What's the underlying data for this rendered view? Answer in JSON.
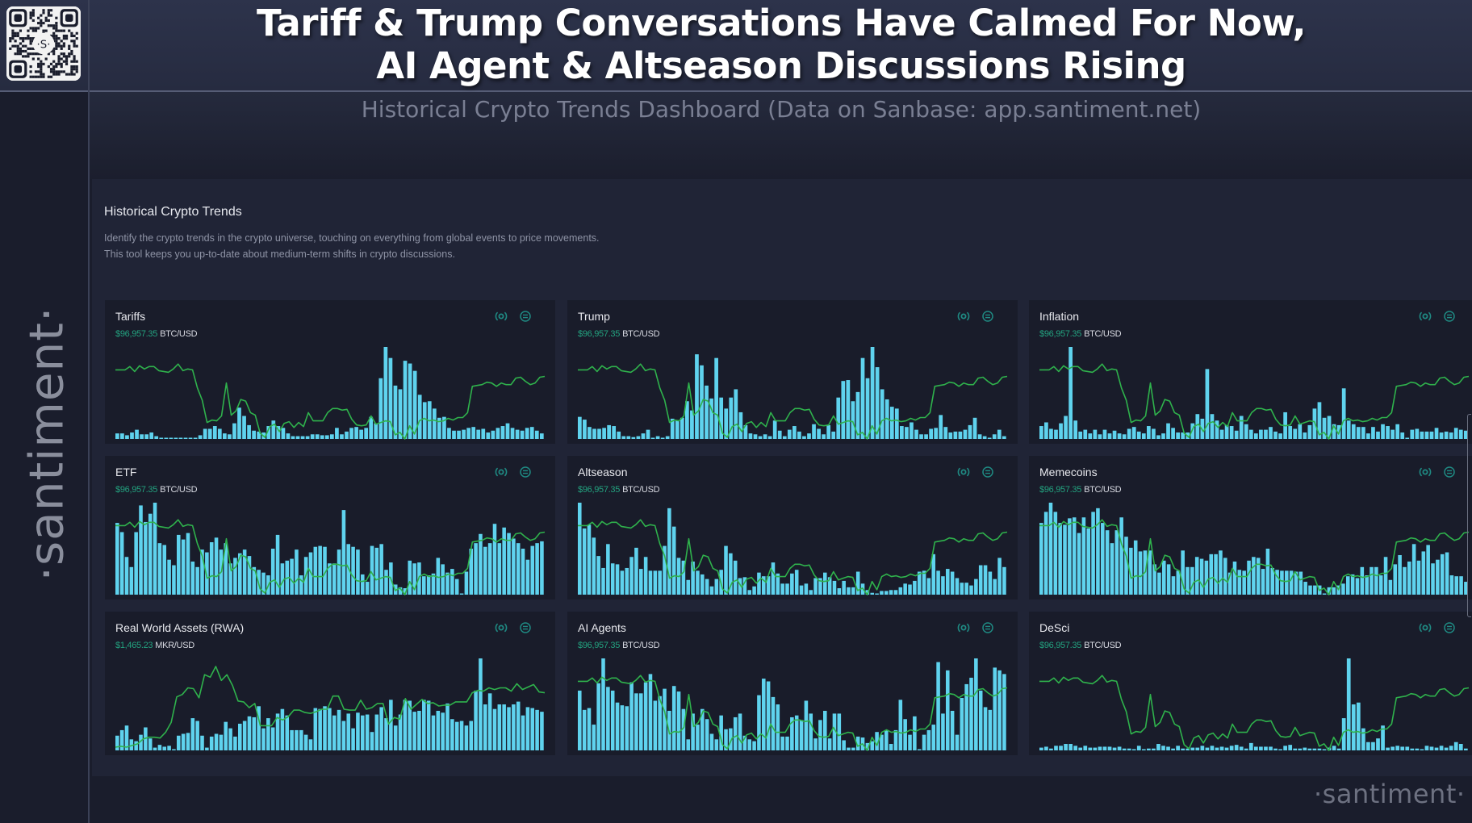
{
  "header": {
    "title_line1": "Tariff & Trump Conversations Have Calmed For Now,",
    "title_line2": "AI Agent & Altseason Discussions Rising",
    "subtitle": "Historical Crypto Trends Dashboard (Data on Sanbase: app.santiment.net)",
    "qr_center_glyph": "·S·"
  },
  "sidebar": {
    "logo_text": "·santiment·"
  },
  "watermark": "·santiment·",
  "panel": {
    "title": "Historical Crypto Trends",
    "description": "Identify the crypto trends in the crypto universe, touching on everything from global events to price movements. This tool keeps you up-to-date about medium-term shifts in crypto discussions."
  },
  "colors": {
    "bar": "#5fd3ee",
    "line": "#2fb24c",
    "price": "#23a27f",
    "icon": "#1f8a83"
  },
  "icons": {
    "signal": "broadcast-icon",
    "menu": "circle-menu-icon"
  },
  "btc_price_line": [
    0.82,
    0.82,
    0.82,
    0.86,
    0.8,
    0.87,
    0.83,
    0.86,
    0.86,
    0.81,
    0.8,
    0.79,
    0.83,
    0.89,
    0.81,
    0.83,
    0.82,
    0.6,
    0.45,
    0.18,
    0.21,
    0.2,
    0.26,
    0.66,
    0.27,
    0.32,
    0.46,
    0.44,
    0.3,
    0.27,
    0.05,
    0.0,
    0.13,
    0.16,
    0.07,
    0.17,
    0.19,
    0.12,
    0.18,
    0.13,
    0.3,
    0.2,
    0.2,
    0.2,
    0.3,
    0.35,
    0.35,
    0.33,
    0.34,
    0.22,
    0.15,
    0.14,
    0.15,
    0.26,
    0.16,
    0.18,
    0.2,
    0.19,
    0.03,
    0.06,
    -0.02,
    0.14,
    0.04,
    0.2,
    0.23,
    0.2,
    0.21,
    0.19,
    0.2,
    0.23,
    0.21,
    0.24,
    0.24,
    0.3,
    0.62,
    0.63,
    0.64,
    0.67,
    0.66,
    0.62,
    0.66,
    0.64,
    0.64,
    0.72,
    0.73,
    0.68,
    0.64,
    0.66,
    0.73,
    0.74
  ],
  "cards": [
    {
      "title": "Tariffs",
      "price": "$96,957.35",
      "pair": "BTC/USD",
      "chart_data": {
        "type": "bar+line",
        "bars": [
          0.06,
          0.06,
          0.04,
          0.07,
          0.1,
          0.05,
          0.05,
          0.07,
          0.03,
          0.01,
          0.01,
          0.0,
          0.0,
          0.01,
          0.01,
          0.01,
          0.0,
          0.04,
          0.11,
          0.11,
          0.14,
          0.11,
          0.06,
          0.05,
          0.17,
          0.34,
          0.25,
          0.15,
          0.09,
          0.08,
          0.07,
          0.14,
          0.2,
          0.14,
          0.12,
          0.06,
          0.03,
          0.03,
          0.03,
          0.03,
          0.05,
          0.05,
          0.04,
          0.04,
          0.05,
          0.12,
          0.05,
          0.08,
          0.12,
          0.13,
          0.1,
          0.12,
          0.24,
          0.17,
          0.66,
          1.0,
          0.88,
          0.58,
          0.54,
          0.85,
          0.82,
          0.74,
          0.48,
          0.4,
          0.41,
          0.33,
          0.23,
          0.24,
          0.12,
          0.09,
          0.09,
          0.1,
          0.12,
          0.13,
          0.1,
          0.11,
          0.07,
          0.09,
          0.12,
          0.14,
          0.17,
          0.12,
          0.1,
          0.09,
          0.12,
          0.13,
          0.09,
          0.06
        ]
      }
    },
    {
      "title": "Trump",
      "price": "$96,957.35",
      "pair": "BTC/USD",
      "chart_data": {
        "type": "bar+line",
        "bars": [
          0.24,
          0.21,
          0.13,
          0.11,
          0.11,
          0.12,
          0.15,
          0.14,
          0.08,
          0.03,
          0.03,
          0.02,
          0.03,
          0.06,
          0.1,
          0.01,
          0.03,
          0.0,
          0.03,
          0.22,
          0.2,
          0.23,
          0.41,
          0.31,
          0.92,
          0.8,
          0.58,
          0.44,
          0.88,
          0.45,
          0.33,
          0.45,
          0.54,
          0.29,
          0.15,
          0.06,
          0.05,
          0.03,
          0.05,
          0.03,
          0.2,
          0.09,
          0.03,
          0.1,
          0.14,
          0.08,
          0.03,
          0.06,
          0.16,
          0.11,
          0.05,
          0.15,
          0.08,
          0.45,
          0.63,
          0.64,
          0.41,
          0.51,
          0.88,
          0.66,
          1.0,
          0.78,
          0.54,
          0.43,
          0.35,
          0.33,
          0.14,
          0.13,
          0.18,
          0.1,
          0.05,
          0.05,
          0.11,
          0.12,
          0.26,
          0.13,
          0.07,
          0.08,
          0.08,
          0.1,
          0.15,
          0.23,
          0.05,
          0.03,
          0.0,
          0.05,
          0.1,
          0.03
        ]
      }
    },
    {
      "title": "Inflation",
      "price": "$96,957.35",
      "pair": "BTC/USD",
      "chart_data": {
        "type": "bar+line",
        "bars": [
          0.14,
          0.18,
          0.11,
          0.1,
          0.17,
          0.25,
          1.0,
          0.2,
          0.08,
          0.1,
          0.06,
          0.1,
          0.05,
          0.1,
          0.06,
          0.09,
          0.06,
          0.05,
          0.11,
          0.13,
          0.08,
          0.06,
          0.14,
          0.11,
          0.04,
          0.06,
          0.17,
          0.12,
          0.07,
          0.07,
          0.07,
          0.17,
          0.27,
          0.22,
          0.76,
          0.27,
          0.2,
          0.1,
          0.15,
          0.14,
          0.09,
          0.25,
          0.16,
          0.1,
          0.06,
          0.1,
          0.1,
          0.13,
          0.08,
          0.06,
          0.29,
          0.14,
          0.11,
          0.16,
          0.07,
          0.15,
          0.33,
          0.4,
          0.23,
          0.25,
          0.16,
          0.15,
          0.55,
          0.2,
          0.16,
          0.13,
          0.13,
          0.06,
          0.13,
          0.08,
          0.16,
          0.14,
          0.1,
          0.16,
          0.07,
          0.0,
          0.1,
          0.11,
          0.08,
          0.08,
          0.08,
          0.12,
          0.07,
          0.08,
          0.07,
          0.12,
          0.1,
          0.09
        ]
      }
    },
    {
      "title": "ETF",
      "price": "$96,957.35",
      "pair": "BTC/USD",
      "chart_data": {
        "type": "bar+line",
        "bars": [
          0.78,
          0.68,
          0.41,
          0.3,
          0.68,
          0.97,
          0.79,
          0.88,
          1.0,
          0.56,
          0.54,
          0.38,
          0.32,
          0.65,
          0.6,
          0.67,
          0.36,
          0.3,
          0.49,
          0.46,
          0.57,
          0.62,
          0.49,
          0.56,
          0.34,
          0.4,
          0.45,
          0.49,
          0.42,
          0.3,
          0.27,
          0.24,
          0.21,
          0.5,
          0.65,
          0.34,
          0.37,
          0.39,
          0.49,
          0.21,
          0.41,
          0.46,
          0.52,
          0.53,
          0.52,
          0.34,
          0.34,
          0.49,
          0.92,
          0.55,
          0.52,
          0.49,
          0.22,
          0.14,
          0.53,
          0.51,
          0.55,
          0.27,
          0.35,
          0.11,
          0.08,
          0.07,
          0.37,
          0.34,
          0.35,
          0.2,
          0.21,
          0.23,
          0.4,
          0.33,
          0.24,
          0.28,
          0.17,
          0.0,
          0.25,
          0.5,
          0.56,
          0.66,
          0.52,
          0.56,
          0.77,
          0.56,
          0.73,
          0.67,
          0.61,
          0.56,
          0.5,
          0.38,
          0.53,
          0.56,
          0.58
        ]
      }
    },
    {
      "title": "Altseason",
      "price": "$96,957.35",
      "pair": "BTC/USD",
      "chart_data": {
        "type": "bar+line",
        "bars": [
          1.0,
          0.72,
          0.76,
          0.62,
          0.42,
          0.29,
          0.55,
          0.34,
          0.33,
          0.26,
          0.29,
          0.41,
          0.51,
          0.28,
          0.41,
          0.26,
          0.26,
          0.26,
          0.53,
          0.94,
          0.74,
          0.4,
          0.37,
          0.16,
          0.36,
          0.26,
          0.22,
          0.17,
          0.09,
          0.17,
          0.27,
          0.53,
          0.45,
          0.37,
          0.18,
          0.19,
          0.05,
          0.09,
          0.24,
          0.2,
          0.2,
          0.35,
          0.23,
          0.12,
          0.12,
          0.23,
          0.27,
          0.1,
          0.12,
          0.05,
          0.18,
          0.18,
          0.24,
          0.19,
          0.15,
          0.07,
          0.15,
          0.08,
          0.08,
          0.25,
          0.12,
          0.05,
          0.02,
          0.0,
          0.04,
          0.04,
          0.05,
          0.05,
          0.08,
          0.12,
          0.11,
          0.15,
          0.25,
          0.26,
          0.18,
          0.44,
          0.26,
          0.2,
          0.28,
          0.25,
          0.18,
          0.13,
          0.13,
          0.1,
          0.17,
          0.32,
          0.32,
          0.25,
          0.17,
          0.4,
          0.3
        ]
      }
    },
    {
      "title": "Memecoins",
      "price": "$96,957.35",
      "pair": "BTC/USD",
      "chart_data": {
        "type": "bar+line",
        "bars": [
          0.78,
          0.9,
          1.0,
          0.9,
          0.78,
          0.76,
          0.83,
          0.84,
          0.67,
          0.84,
          0.72,
          0.9,
          0.94,
          0.78,
          0.7,
          0.56,
          0.7,
          0.84,
          0.63,
          0.51,
          0.59,
          0.47,
          0.48,
          0.48,
          0.33,
          0.24,
          0.37,
          0.33,
          0.2,
          0.26,
          0.48,
          0.3,
          0.3,
          0.41,
          0.39,
          0.37,
          0.44,
          0.44,
          0.48,
          0.4,
          0.24,
          0.36,
          0.27,
          0.26,
          0.37,
          0.41,
          0.4,
          0.28,
          0.5,
          0.29,
          0.27,
          0.26,
          0.26,
          0.26,
          0.25,
          0.25,
          0.14,
          0.1,
          0.1,
          0.1,
          0.0,
          0.08,
          0.08,
          0.1,
          0.12,
          0.2,
          0.22,
          0.18,
          0.3,
          0.21,
          0.3,
          0.3,
          0.21,
          0.41,
          0.16,
          0.33,
          0.43,
          0.3,
          0.36,
          0.55,
          0.37,
          0.47,
          0.54,
          0.34,
          0.38,
          0.44,
          0.46,
          0.21,
          0.2,
          0.2,
          0.14
        ]
      }
    },
    {
      "title": "Real World Assets (RWA)",
      "price": "$1,465.23",
      "pair": "MKR/USD",
      "chart_data": {
        "type": "bar+line",
        "bars": [
          0.16,
          0.22,
          0.27,
          0.12,
          0.1,
          0.17,
          0.25,
          0.13,
          0.03,
          0.06,
          0.04,
          0.05,
          0.0,
          0.16,
          0.18,
          0.19,
          0.35,
          0.32,
          0.16,
          0.03,
          0.15,
          0.18,
          0.17,
          0.31,
          0.24,
          0.15,
          0.29,
          0.32,
          0.37,
          0.36,
          0.48,
          0.24,
          0.35,
          0.25,
          0.4,
          0.45,
          0.38,
          0.22,
          0.22,
          0.22,
          0.17,
          0.12,
          0.46,
          0.45,
          0.48,
          0.46,
          0.38,
          0.44,
          0.32,
          0.4,
          0.24,
          0.41,
          0.38,
          0.39,
          0.2,
          0.39,
          0.47,
          0.35,
          0.55,
          0.27,
          0.39,
          0.55,
          0.54,
          0.42,
          0.43,
          0.55,
          0.54,
          0.38,
          0.43,
          0.41,
          0.51,
          0.34,
          0.31,
          0.32,
          0.27,
          0.32,
          0.65,
          1.0,
          0.5,
          0.62,
          0.45,
          0.5,
          0.5,
          0.47,
          0.5,
          0.53,
          0.38,
          0.47,
          0.46,
          0.44,
          0.42
        ]
      },
      "line": [
        0.02,
        0.03,
        0.02,
        0.04,
        0.06,
        0.12,
        0.14,
        0.14,
        0.13,
        0.2,
        0.32,
        0.63,
        0.66,
        0.74,
        0.73,
        0.62,
        0.9,
        0.87,
        1.0,
        0.83,
        0.9,
        0.77,
        0.58,
        0.57,
        0.5,
        0.55,
        0.28,
        0.28,
        0.28,
        0.38,
        0.35,
        0.39,
        0.47,
        0.47,
        0.44,
        0.43,
        0.45,
        0.48,
        0.48,
        0.64,
        0.64,
        0.48,
        0.47,
        0.47,
        0.59,
        0.48,
        0.5,
        0.55,
        0.55,
        0.3,
        0.38,
        0.36,
        0.61,
        0.48,
        0.54,
        0.6,
        0.55,
        0.56,
        0.52,
        0.53,
        0.53,
        0.57,
        0.57,
        0.57,
        0.68,
        0.71,
        0.7,
        0.74,
        0.72,
        0.74,
        0.74,
        0.7,
        0.79,
        0.72,
        0.75,
        0.78,
        0.69,
        0.68
      ]
    },
    {
      "title": "AI Agents",
      "price": "$96,957.35",
      "pair": "BTC/USD",
      "chart_data": {
        "type": "bar+line",
        "bars": [
          0.65,
          0.44,
          0.46,
          0.28,
          0.73,
          1.0,
          0.69,
          0.65,
          0.52,
          0.49,
          0.48,
          0.74,
          0.62,
          0.62,
          0.74,
          0.83,
          0.54,
          0.59,
          0.67,
          0.43,
          0.7,
          0.64,
          0.45,
          0.12,
          0.4,
          0.28,
          0.45,
          0.34,
          0.18,
          0.12,
          0.38,
          0.23,
          0.24,
          0.36,
          0.4,
          0.16,
          0.12,
          0.1,
          0.6,
          0.78,
          0.75,
          0.58,
          0.5,
          0.15,
          0.15,
          0.36,
          0.38,
          0.33,
          0.54,
          0.4,
          0.13,
          0.33,
          0.43,
          0.13,
          0.4,
          0.4,
          0.11,
          0.03,
          0.03,
          0.15,
          0.14,
          0.08,
          0.1,
          0.2,
          0.17,
          0.22,
          0.07,
          0.22,
          0.55,
          0.34,
          0.17,
          0.37,
          0.0,
          0.17,
          0.22,
          0.28,
          0.96,
          0.4,
          0.87,
          0.43,
          0.17,
          0.57,
          0.72,
          0.79,
          1.0,
          0.65,
          0.47,
          0.44,
          0.9,
          0.87,
          0.83
        ]
      }
    },
    {
      "title": "DeSci",
      "price": "$96,957.35",
      "pair": "BTC/USD",
      "chart_data": {
        "type": "bar+line",
        "bars": [
          0.03,
          0.04,
          0.02,
          0.05,
          0.05,
          0.07,
          0.07,
          0.05,
          0.03,
          0.05,
          0.03,
          0.03,
          0.04,
          0.04,
          0.04,
          0.03,
          0.04,
          0.02,
          0.02,
          0.01,
          0.05,
          0.0,
          0.02,
          0.02,
          0.07,
          0.05,
          0.04,
          0.02,
          0.05,
          0.02,
          0.02,
          0.03,
          0.03,
          0.05,
          0.03,
          0.05,
          0.03,
          0.04,
          0.03,
          0.05,
          0.06,
          0.04,
          0.02,
          0.08,
          0.04,
          0.04,
          0.04,
          0.04,
          0.02,
          0.01,
          0.05,
          0.06,
          0.02,
          0.02,
          0.03,
          0.02,
          0.02,
          0.02,
          0.01,
          0.03,
          0.05,
          0.02,
          0.35,
          1.0,
          0.5,
          0.52,
          0.24,
          0.09,
          0.09,
          0.13,
          0.27,
          0.03,
          0.04,
          0.05,
          0.04,
          0.04,
          0.02,
          0.02,
          0.01,
          0.05,
          0.04,
          0.03,
          0.05,
          0.03,
          0.05,
          0.09,
          0.07,
          0.02
        ]
      }
    }
  ]
}
